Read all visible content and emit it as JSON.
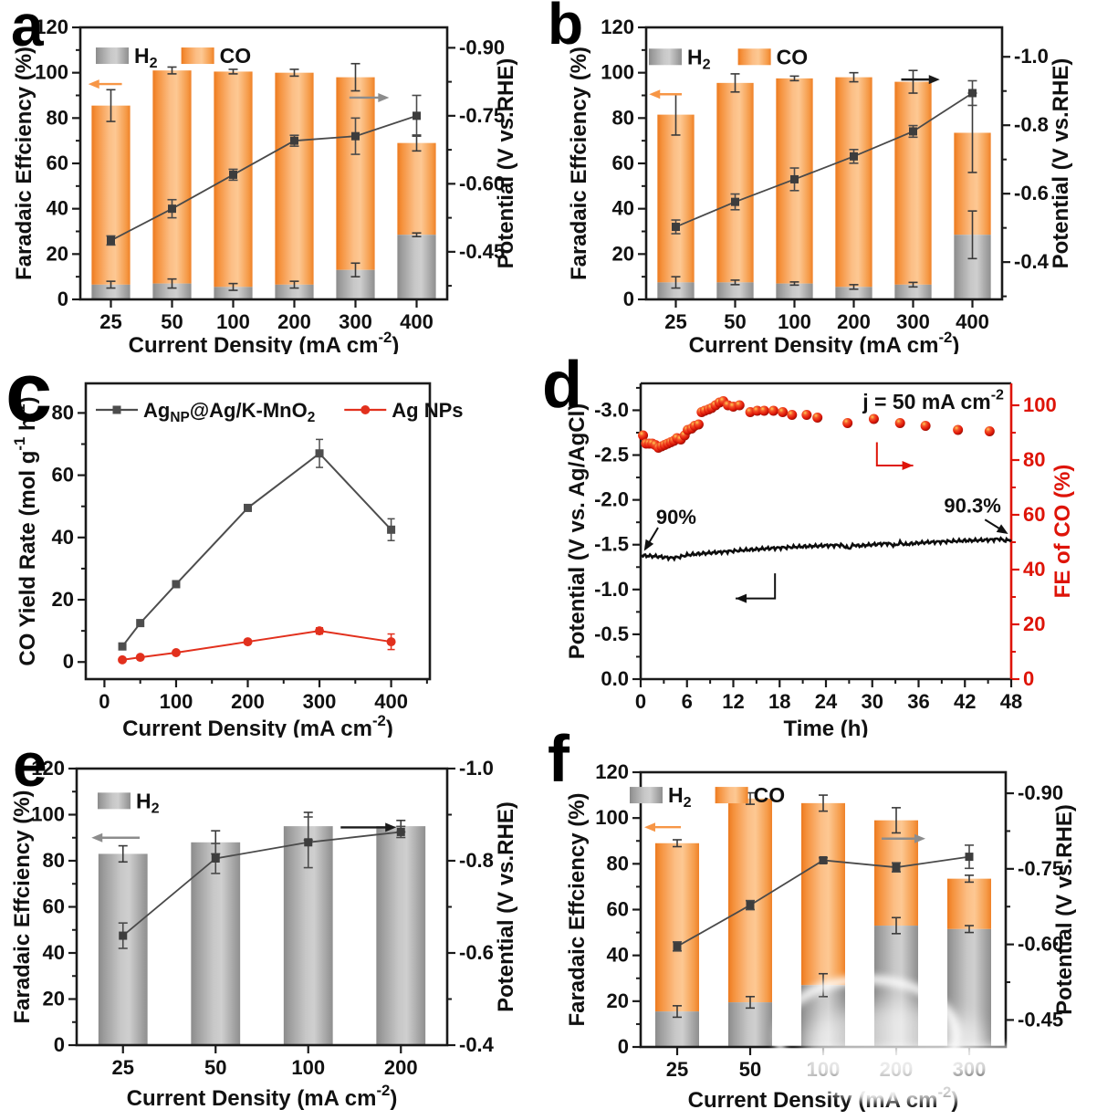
{
  "colors": {
    "orange": "#F79646",
    "gray": "#8C8C8C",
    "black": "#1A1A1A",
    "line_dark": "#4A4A4A",
    "marker_dark": "#3D3D3D",
    "red": "#E2301D",
    "axis": "#1A1A1A",
    "red_axis": "#DE1408"
  },
  "chart_data": [
    {
      "panel_label": "a",
      "type": "stacked-bar-line",
      "x_axis": {
        "label": "Current Density (mA cm^{-2})",
        "categories": [
          "25",
          "50",
          "100",
          "200",
          "300",
          "400"
        ]
      },
      "left_axis": {
        "label": "Faradaic Effciency (%)",
        "min": 0,
        "max": 120,
        "major_ticks": [
          0,
          20,
          40,
          60,
          80,
          100,
          120
        ]
      },
      "right_axis": {
        "label": "Potential (V vs.RHE)",
        "tick_labels": [
          "-0.45",
          "-0.60",
          "-0.75",
          "-0.90"
        ],
        "tick_values": [
          -0.45,
          -0.6,
          -0.75,
          -0.9
        ],
        "value_at_left0": -0.345,
        "value_at_left120": -0.945
      },
      "legend": [
        {
          "label": "H_{2}",
          "swatch": "gray"
        },
        {
          "label": "CO",
          "swatch": "orange"
        }
      ],
      "series": {
        "h2": [
          6.5,
          7,
          5.5,
          6.5,
          13,
          28.5
        ],
        "h2_err": [
          1.5,
          2,
          1.5,
          1.5,
          3,
          0.8
        ],
        "total": [
          85.5,
          101,
          100.5,
          100,
          98,
          69
        ],
        "total_err": [
          7,
          1.5,
          1,
          1.5,
          6,
          3.5
        ],
        "potential": [
          -0.475,
          -0.545,
          -0.62,
          -0.695,
          -0.705,
          -0.75
        ],
        "potential_err": [
          0.01,
          0.02,
          0.012,
          0.012,
          0.04,
          0.045
        ]
      },
      "arrows": [
        {
          "dir": "left",
          "color": "orange",
          "x0": 0.13,
          "x1": 0.68,
          "L": 95
        },
        {
          "dir": "right",
          "color": "gray",
          "x0": 4.4,
          "x1": 5.05,
          "L": 89
        }
      ]
    },
    {
      "panel_label": "b",
      "type": "stacked-bar-line",
      "x_axis": {
        "label": "Current Density (mA cm^{-2})",
        "categories": [
          "25",
          "50",
          "100",
          "200",
          "300",
          "400"
        ]
      },
      "left_axis": {
        "label": "Faradaic Effciency (%)",
        "min": 0,
        "max": 120,
        "major_ticks": [
          0,
          20,
          40,
          60,
          80,
          100,
          120
        ]
      },
      "right_axis": {
        "label": "Potential (V vs.RHE)",
        "tick_labels": [
          "-0.4",
          "-0.6",
          "-0.8",
          "-1.0"
        ],
        "tick_values": [
          -0.4,
          -0.6,
          -0.8,
          -1.0
        ],
        "value_at_left0": -0.291,
        "value_at_left120": -1.086
      },
      "legend": [
        {
          "label": "H_{2}",
          "swatch": "gray"
        },
        {
          "label": "CO",
          "swatch": "orange"
        }
      ],
      "series": {
        "h2": [
          7.5,
          7.5,
          7,
          5.5,
          6.5,
          28.5
        ],
        "h2_err": [
          2.5,
          1,
          0.7,
          1,
          1,
          10.5
        ],
        "total": [
          81.5,
          95.5,
          97.5,
          98,
          96,
          73.5
        ],
        "total_err": [
          9,
          4,
          1,
          2,
          5,
          17.5
        ],
        "potential": [
          -0.503,
          -0.576,
          -0.642,
          -0.709,
          -0.782,
          -0.894
        ],
        "potential_err": [
          0.02,
          0.023,
          0.033,
          0.02,
          0.017,
          0.036
        ]
      },
      "arrows": [
        {
          "dir": "left",
          "color": "orange",
          "x0": 0.05,
          "x1": 0.6,
          "L": 90.5
        },
        {
          "dir": "right",
          "color": "black",
          "x0": 4.3,
          "x1": 4.95,
          "L": 97
        }
      ]
    },
    {
      "panel_label": "c",
      "type": "xy-line",
      "x_axis": {
        "label": "Current Density (mA cm^{-2})",
        "min": -26,
        "max": 454,
        "major_ticks": [
          0,
          100,
          200,
          300,
          400
        ],
        "minor_step": 50
      },
      "y_axis": {
        "label": "CO Yield Rate (mol g^{-1} h^{-1})",
        "min": -5.5,
        "max": 89.5,
        "major_ticks": [
          0,
          20,
          40,
          60,
          80
        ],
        "minor_step": 10
      },
      "series": [
        {
          "name": "Ag_{NP}@Ag/K-MnO_{2}",
          "color": "#4D4D4D",
          "marker": "square",
          "x": [
            25,
            50,
            100,
            200,
            300,
            400
          ],
          "y": [
            5,
            12.5,
            25,
            49.5,
            67,
            42.5
          ],
          "err": [
            0.8,
            0.8,
            1,
            1,
            4.5,
            3.5
          ]
        },
        {
          "name": "Ag NPs",
          "color": "#E2301D",
          "marker": "circle",
          "x": [
            25,
            50,
            100,
            200,
            300,
            400
          ],
          "y": [
            0.7,
            1.5,
            3,
            6.5,
            10,
            6.5
          ],
          "err": [
            0.5,
            0.5,
            0.5,
            0.5,
            1,
            2.5
          ]
        }
      ]
    },
    {
      "panel_label": "d",
      "type": "stability",
      "x_axis": {
        "label": "Time (h)",
        "min": 0,
        "max": 48,
        "major_ticks": [
          0,
          6,
          12,
          18,
          24,
          30,
          36,
          42,
          48
        ],
        "minor_step": 3
      },
      "left_axis": {
        "label": "Potential (V vs. Ag/AgCl)",
        "min": 0,
        "max": -3.3,
        "tick_labels": [
          "0.0",
          "-0.5",
          "-1.0",
          "-1.5",
          "-2.0",
          "-2.5",
          "-3.0"
        ],
        "tick_values": [
          0,
          -0.5,
          -1,
          -1.5,
          -2,
          -2.5,
          -3
        ],
        "minor_step": 0.25
      },
      "right_axis": {
        "label": "FE of CO (%)",
        "min": 0,
        "max": 108,
        "major_ticks": [
          0,
          20,
          40,
          60,
          80,
          100
        ],
        "minor_step": 10
      },
      "annotation_j": "j = 50 mA cm^{-2}",
      "annotations": [
        {
          "text": "90%",
          "tx": 2.0,
          "ty": -1.73,
          "arrow": [
            2.25,
            -1.69,
            0.44,
            -1.43
          ]
        },
        {
          "text": "90.3%",
          "tx": 39.3,
          "ty": -1.86,
          "arrow": [
            44.6,
            -1.78,
            47.6,
            -1.62
          ]
        }
      ],
      "elbow_arrows": [
        {
          "color": "red",
          "axis": "right",
          "pts": [
            [
              30.6,
              86.5
            ],
            [
              30.6,
              78
            ],
            [
              35.3,
              78
            ]
          ]
        },
        {
          "color": "black",
          "axis": "left",
          "pts": [
            [
              17.4,
              -1.18
            ],
            [
              17.4,
              -0.9
            ],
            [
              12.3,
              -0.9
            ]
          ]
        }
      ],
      "potential_series": {
        "t": [
          0,
          1,
          2,
          3,
          4,
          5,
          6,
          8,
          10,
          12,
          14,
          16,
          18,
          20,
          22,
          24,
          26,
          27,
          27.6,
          28.2,
          30,
          32,
          33,
          33.6,
          34.2,
          36,
          38,
          40,
          42,
          44,
          45.5,
          46.5,
          47.2,
          48
        ],
        "v": [
          -1.38,
          -1.375,
          -1.37,
          -1.36,
          -1.352,
          -1.362,
          -1.385,
          -1.402,
          -1.415,
          -1.43,
          -1.443,
          -1.455,
          -1.465,
          -1.475,
          -1.483,
          -1.49,
          -1.495,
          -1.458,
          -1.5,
          -1.487,
          -1.5,
          -1.515,
          -1.49,
          -1.523,
          -1.502,
          -1.52,
          -1.53,
          -1.537,
          -1.545,
          -1.55,
          -1.556,
          -1.565,
          -1.545,
          -1.558
        ]
      },
      "fe_series": {
        "t": [
          0.3,
          0.7,
          1.1,
          1.5,
          1.9,
          2.3,
          2.7,
          3.1,
          3.5,
          3.9,
          4.3,
          4.7,
          5.2,
          5.7,
          6.1,
          6.6,
          7.0,
          7.5,
          7.9,
          8.3,
          8.8,
          9.2,
          9.7,
          10.2,
          10.7,
          11.3,
          12.0,
          12.8,
          14.2,
          15.1,
          16.0,
          17.2,
          18.4,
          19.6,
          21.5,
          22.9,
          26.8,
          30.2,
          33.6,
          36.9,
          41.1,
          45.2
        ],
        "fe": [
          89,
          86,
          86,
          86,
          85.5,
          84.5,
          85,
          85.5,
          86,
          86.5,
          87,
          88,
          87.5,
          89,
          91,
          91.5,
          92.5,
          93,
          97.5,
          98,
          98.5,
          99,
          100,
          101,
          101.5,
          100,
          99.5,
          100,
          97.5,
          98,
          98,
          98,
          97.5,
          96.5,
          96.5,
          95.5,
          93.5,
          95,
          93.5,
          92.5,
          91,
          90.5
        ]
      }
    },
    {
      "panel_label": "e",
      "type": "stacked-bar-line",
      "x_axis": {
        "label": "Current Density (mA cm^{-2})",
        "categories": [
          "25",
          "50",
          "100",
          "200"
        ]
      },
      "left_axis": {
        "label": "Faradaic Effciency (%)",
        "min": 0,
        "max": 120,
        "major_ticks": [
          0,
          20,
          40,
          60,
          80,
          100,
          120
        ]
      },
      "right_axis": {
        "label": "Potential (V vs.RHE)",
        "tick_labels": [
          "-0.4",
          "-0.6",
          "-0.8",
          "-1.0"
        ],
        "tick_values": [
          -0.4,
          -0.6,
          -0.8,
          -1.0
        ],
        "value_at_left0": -0.4,
        "value_at_left120": -1.0
      },
      "legend": [
        {
          "label": "H_{2}",
          "swatch": "gray"
        }
      ],
      "series": {
        "h2": [
          83,
          88,
          95,
          95
        ],
        "h2_err": [
          3.5,
          5,
          6,
          2.5
        ],
        "potential": [
          -0.6375,
          -0.805,
          -0.84,
          -0.8625
        ],
        "potential_err": [
          0.0275,
          0.0325,
          0.055,
          0.012
        ]
      },
      "arrows": [
        {
          "dir": "left",
          "color": "gray",
          "x0": 0.16,
          "x1": 0.68,
          "L": 90
        },
        {
          "dir": "right",
          "color": "black",
          "x0": 2.85,
          "x1": 3.45,
          "L": 94.5
        }
      ]
    },
    {
      "panel_label": "f",
      "type": "stacked-bar-line",
      "x_axis": {
        "label": "Current Density (mA cm^{-2})",
        "categories": [
          "25",
          "50",
          "100",
          "200",
          "300"
        ]
      },
      "left_axis": {
        "label": "Faradaic Effciency (%)",
        "min": 0,
        "max": 120,
        "major_ticks": [
          0,
          20,
          40,
          60,
          80,
          100,
          120
        ]
      },
      "right_axis": {
        "label": "Potential (V vs.RHE)",
        "tick_labels": [
          "-0.45",
          "-0.60",
          "-0.75",
          "-0.90"
        ],
        "tick_values": [
          -0.45,
          -0.6,
          -0.75,
          -0.9
        ],
        "value_at_left0": -0.3964,
        "value_at_left120": -0.9418
      },
      "legend": [
        {
          "label": "H_{2}",
          "swatch": "gray"
        },
        {
          "label": "CO",
          "swatch": "orange"
        }
      ],
      "series": {
        "h2": [
          15.5,
          19.5,
          27,
          53,
          51.5
        ],
        "h2_err": [
          2.5,
          2.5,
          5,
          3.5,
          1.5
        ],
        "total": [
          89,
          108.5,
          106.5,
          99,
          73.5
        ],
        "total_err": [
          1.5,
          2.5,
          3.5,
          5.5,
          1.5
        ],
        "potential": [
          -0.596,
          -0.678,
          -0.767,
          -0.753,
          -0.774
        ],
        "potential_err": [
          0.009,
          0.009,
          0.005,
          0.009,
          0.023
        ]
      },
      "arrows": [
        {
          "dir": "left",
          "color": "orange",
          "x0": 0.05,
          "x1": 0.55,
          "L": 96
        },
        {
          "dir": "right",
          "color": "gray",
          "x0": 3.3,
          "x1": 3.9,
          "L": 91
        }
      ]
    }
  ]
}
